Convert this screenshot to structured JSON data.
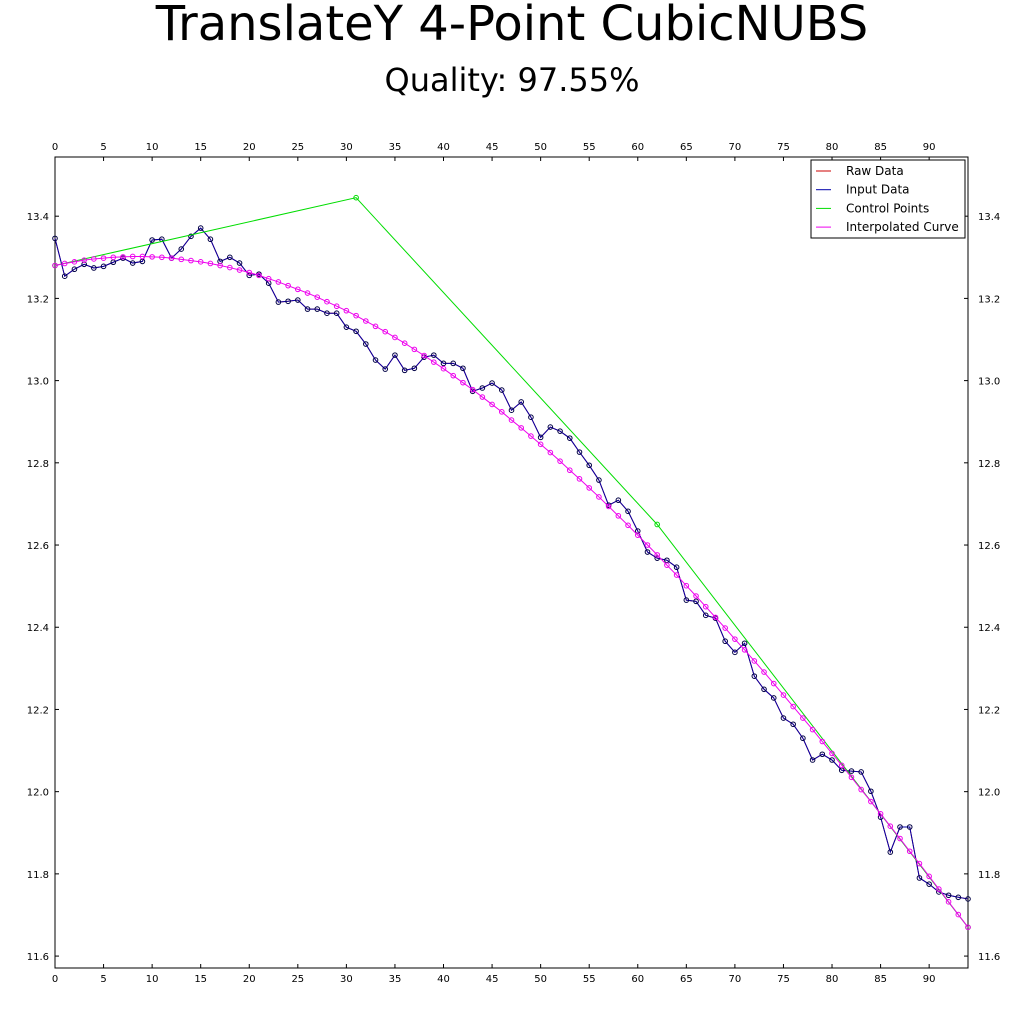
{
  "chart_data": {
    "type": "line",
    "title": "TranslateY 4-Point CubicNUBS",
    "subtitle": "Quality: 97.55%",
    "x": [
      0,
      1,
      2,
      3,
      4,
      5,
      6,
      7,
      8,
      9,
      10,
      11,
      12,
      13,
      14,
      15,
      16,
      17,
      18,
      19,
      20,
      21,
      22,
      23,
      24,
      25,
      26,
      27,
      28,
      29,
      30,
      31,
      32,
      33,
      34,
      35,
      36,
      37,
      38,
      39,
      40,
      41,
      42,
      43,
      44,
      45,
      46,
      47,
      48,
      49,
      50,
      51,
      52,
      53,
      54,
      55,
      56,
      57,
      58,
      59,
      60,
      61,
      62,
      63,
      64,
      65,
      66,
      67,
      68,
      69,
      70,
      71,
      72,
      73,
      74,
      75,
      76,
      77,
      78,
      79,
      80,
      81,
      82,
      83,
      84,
      85,
      86,
      87,
      88,
      89,
      90,
      91,
      92,
      93,
      94
    ],
    "series": [
      {
        "name": "Raw Data",
        "color": "#cc0000",
        "markers": false,
        "values": [
          13.346,
          13.254,
          13.271,
          13.283,
          13.274,
          13.278,
          13.288,
          13.298,
          13.286,
          13.29,
          13.342,
          13.344,
          13.298,
          13.32,
          13.351,
          13.371,
          13.344,
          13.29,
          13.3,
          13.286,
          13.256,
          13.259,
          13.237,
          13.191,
          13.193,
          13.196,
          13.174,
          13.174,
          13.164,
          13.164,
          13.13,
          13.12,
          13.089,
          13.05,
          13.028,
          13.062,
          13.025,
          13.03,
          13.057,
          13.062,
          13.042,
          13.042,
          13.03,
          12.974,
          12.982,
          12.994,
          12.977,
          12.928,
          12.948,
          12.911,
          12.862,
          12.887,
          12.877,
          12.86,
          12.826,
          12.794,
          12.758,
          12.697,
          12.709,
          12.682,
          12.634,
          12.583,
          12.568,
          12.563,
          12.546,
          12.466,
          12.463,
          12.429,
          12.422,
          12.366,
          12.339,
          12.361,
          12.281,
          12.249,
          12.228,
          12.179,
          12.164,
          12.13,
          12.077,
          12.091,
          12.077,
          12.052,
          12.05,
          12.048,
          12.001,
          11.938,
          11.853,
          11.914,
          11.914,
          11.79,
          11.775,
          11.756,
          11.748,
          11.743,
          11.739
        ]
      },
      {
        "name": "Input Data",
        "color": "#0000aa",
        "markers": true,
        "values": [
          13.346,
          13.254,
          13.271,
          13.283,
          13.274,
          13.278,
          13.288,
          13.298,
          13.286,
          13.29,
          13.342,
          13.344,
          13.298,
          13.32,
          13.351,
          13.371,
          13.344,
          13.29,
          13.3,
          13.286,
          13.256,
          13.259,
          13.237,
          13.191,
          13.193,
          13.196,
          13.174,
          13.174,
          13.164,
          13.164,
          13.13,
          13.12,
          13.089,
          13.05,
          13.028,
          13.062,
          13.025,
          13.03,
          13.057,
          13.062,
          13.042,
          13.042,
          13.03,
          12.974,
          12.982,
          12.994,
          12.977,
          12.928,
          12.948,
          12.911,
          12.862,
          12.887,
          12.877,
          12.86,
          12.826,
          12.794,
          12.758,
          12.697,
          12.709,
          12.682,
          12.634,
          12.583,
          12.568,
          12.563,
          12.546,
          12.466,
          12.463,
          12.429,
          12.422,
          12.366,
          12.339,
          12.361,
          12.281,
          12.249,
          12.228,
          12.179,
          12.164,
          12.13,
          12.077,
          12.091,
          12.077,
          12.052,
          12.05,
          12.048,
          12.001,
          11.938,
          11.853,
          11.914,
          11.914,
          11.79,
          11.775,
          11.756,
          11.748,
          11.743,
          11.739
        ]
      },
      {
        "name": "Control Points",
        "color": "#00dd00",
        "markers": true,
        "x": [
          0,
          31,
          62,
          94
        ],
        "values": [
          13.28,
          13.445,
          12.65,
          11.67
        ]
      },
      {
        "name": "Interpolated Curve",
        "color": "#ee00ee",
        "markers": true,
        "values": [
          13.28,
          13.285,
          13.289,
          13.293,
          13.296,
          13.298,
          13.3,
          13.301,
          13.302,
          13.302,
          13.301,
          13.3,
          13.298,
          13.295,
          13.292,
          13.289,
          13.285,
          13.28,
          13.275,
          13.269,
          13.263,
          13.256,
          13.248,
          13.24,
          13.231,
          13.222,
          13.213,
          13.203,
          13.192,
          13.181,
          13.17,
          13.158,
          13.145,
          13.132,
          13.119,
          13.105,
          13.091,
          13.076,
          13.061,
          13.045,
          13.029,
          13.012,
          12.995,
          12.978,
          12.96,
          12.942,
          12.924,
          12.904,
          12.885,
          12.865,
          12.845,
          12.825,
          12.804,
          12.782,
          12.761,
          12.739,
          12.717,
          12.694,
          12.671,
          12.648,
          12.624,
          12.6,
          12.576,
          12.551,
          12.527,
          12.501,
          12.476,
          12.45,
          12.424,
          12.398,
          12.371,
          12.345,
          12.318,
          12.291,
          12.263,
          12.235,
          12.207,
          12.179,
          12.151,
          12.122,
          12.093,
          12.064,
          12.035,
          12.005,
          11.976,
          11.946,
          11.916,
          11.886,
          11.855,
          11.825,
          11.794,
          11.763,
          11.732,
          11.701,
          11.67
        ]
      }
    ],
    "xlim": [
      0,
      94
    ],
    "xticks": [
      0,
      5,
      10,
      15,
      20,
      25,
      30,
      35,
      40,
      45,
      50,
      55,
      60,
      65,
      70,
      75,
      80,
      85,
      90
    ],
    "ylim": [
      11.571,
      13.544
    ],
    "yticks": [
      11.6,
      11.8,
      {
        "value": 12,
        "label": "12.0"
      },
      12.2,
      12.4,
      12.6,
      12.8,
      {
        "value": 13,
        "label": "13.0"
      },
      13.2,
      13.4
    ],
    "legend": "upper right"
  }
}
